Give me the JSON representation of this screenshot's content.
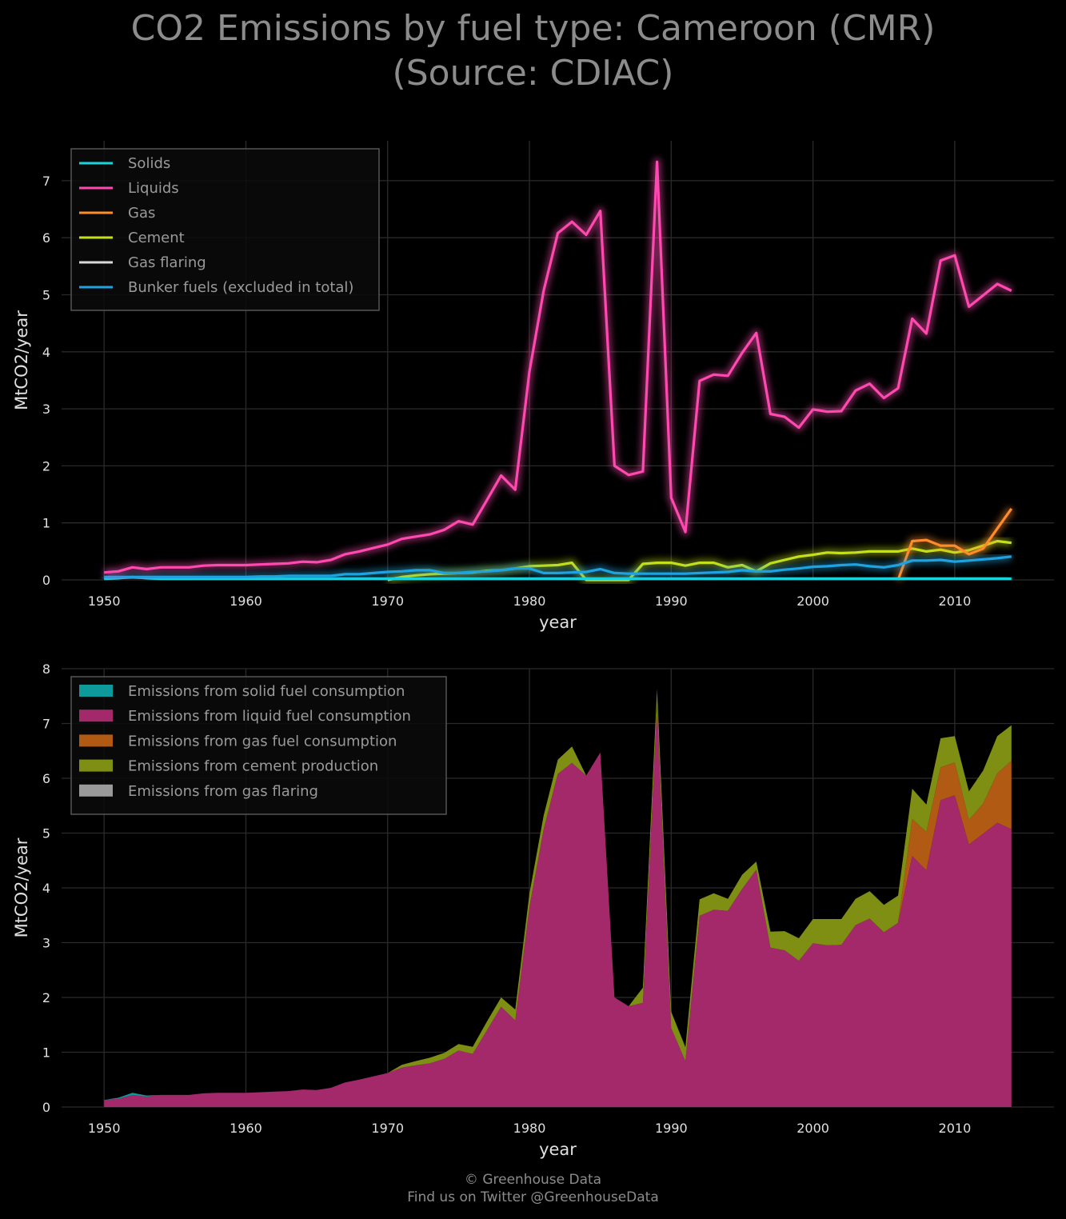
{
  "title": {
    "line1": "CO2 Emissions by fuel type: Cameroon (CMR)",
    "line2": "(Source: CDIAC)"
  },
  "footer": {
    "line1": "© Greenhouse Data",
    "line2": "Find us on Twitter @GreenhouseData"
  },
  "chart_data": [
    {
      "type": "line",
      "xlabel": "year",
      "ylabel": "MtCO2/year",
      "xlim": [
        1947,
        2017
      ],
      "ylim": [
        0,
        7.7
      ],
      "xticks": [
        1950,
        1960,
        1970,
        1980,
        1990,
        2000,
        2010
      ],
      "yticks": [
        0,
        1,
        2,
        3,
        4,
        5,
        6,
        7
      ],
      "grid": true,
      "legend_position": "top-left",
      "x": [
        1950,
        1951,
        1952,
        1953,
        1954,
        1955,
        1956,
        1957,
        1958,
        1959,
        1960,
        1961,
        1962,
        1963,
        1964,
        1965,
        1966,
        1967,
        1968,
        1969,
        1970,
        1971,
        1972,
        1973,
        1974,
        1975,
        1976,
        1977,
        1978,
        1979,
        1980,
        1981,
        1982,
        1983,
        1984,
        1985,
        1986,
        1987,
        1988,
        1989,
        1990,
        1991,
        1992,
        1993,
        1994,
        1995,
        1996,
        1997,
        1998,
        1999,
        2000,
        2001,
        2002,
        2003,
        2004,
        2005,
        2006,
        2007,
        2008,
        2009,
        2010,
        2011,
        2012,
        2013,
        2014
      ],
      "series": [
        {
          "name": "Solids",
          "color": "#17d3dc",
          "values": [
            0.02,
            0.03,
            0.05,
            0.03,
            0.02,
            0.02,
            0.02,
            0.02,
            0.02,
            0.02,
            0.02,
            0.02,
            0.02,
            0.02,
            0.02,
            0.02,
            0.02,
            0.02,
            0.02,
            0.02,
            0.02,
            0.02,
            0.02,
            0.02,
            0.02,
            0.02,
            0.02,
            0.02,
            0.02,
            0.02,
            0.02,
            0.02,
            0.02,
            0.02,
            0.02,
            0.02,
            0.02,
            0.02,
            0.02,
            0.02,
            0.02,
            0.02,
            0.02,
            0.02,
            0.02,
            0.02,
            0.02,
            0.02,
            0.02,
            0.02,
            0.02,
            0.02,
            0.02,
            0.02,
            0.02,
            0.02,
            0.02,
            0.02,
            0.02,
            0.02,
            0.02,
            0.02,
            0.02,
            0.02,
            0.02
          ]
        },
        {
          "name": "Liquids",
          "color": "#ff49b0",
          "values": [
            0.13,
            0.15,
            0.22,
            0.19,
            0.22,
            0.22,
            0.22,
            0.25,
            0.26,
            0.26,
            0.26,
            0.27,
            0.28,
            0.29,
            0.32,
            0.31,
            0.35,
            0.45,
            0.5,
            0.56,
            0.62,
            0.72,
            0.76,
            0.8,
            0.88,
            1.03,
            0.97,
            1.4,
            1.83,
            1.58,
            3.65,
            5.07,
            6.08,
            6.28,
            6.05,
            6.47,
            2.0,
            1.84,
            1.9,
            7.33,
            1.44,
            0.84,
            3.49,
            3.6,
            3.58,
            3.98,
            4.33,
            2.91,
            2.86,
            2.67,
            2.99,
            2.95,
            2.96,
            3.32,
            3.44,
            3.19,
            3.36,
            4.58,
            4.32,
            5.6,
            5.69,
            4.79,
            4.99,
            5.19,
            5.07
          ]
        },
        {
          "name": "Gas",
          "color": "#ff8c2a",
          "values": [
            null,
            null,
            null,
            null,
            null,
            null,
            null,
            null,
            null,
            null,
            null,
            null,
            null,
            null,
            null,
            null,
            null,
            null,
            null,
            null,
            null,
            null,
            null,
            null,
            null,
            null,
            null,
            null,
            null,
            null,
            null,
            null,
            null,
            null,
            null,
            null,
            null,
            null,
            null,
            null,
            null,
            null,
            null,
            null,
            null,
            null,
            null,
            null,
            null,
            null,
            null,
            null,
            null,
            null,
            null,
            null,
            0.0,
            0.68,
            0.7,
            0.6,
            0.6,
            0.45,
            0.55,
            0.9,
            1.25
          ]
        },
        {
          "name": "Cement",
          "color": "#c5e01a",
          "values": [
            null,
            null,
            null,
            null,
            null,
            null,
            null,
            null,
            null,
            null,
            null,
            null,
            null,
            null,
            null,
            null,
            null,
            null,
            null,
            null,
            0.0,
            0.05,
            0.08,
            0.1,
            0.11,
            0.12,
            0.13,
            0.16,
            0.17,
            0.2,
            0.24,
            0.25,
            0.26,
            0.3,
            0.0,
            0.0,
            0.0,
            0.0,
            0.28,
            0.3,
            0.3,
            0.25,
            0.3,
            0.3,
            0.22,
            0.26,
            0.15,
            0.29,
            0.35,
            0.41,
            0.44,
            0.48,
            0.47,
            0.48,
            0.5,
            0.5,
            0.5,
            0.55,
            0.5,
            0.53,
            0.48,
            0.52,
            0.6,
            0.68,
            0.65
          ]
        },
        {
          "name": "Gas flaring",
          "color": "#d9d9d9",
          "values": [
            null,
            null,
            null,
            null,
            null,
            null,
            null,
            null,
            null,
            null,
            null,
            null,
            null,
            null,
            null,
            null,
            null,
            null,
            null,
            null,
            null,
            null,
            null,
            null,
            null,
            null,
            null,
            null,
            null,
            null,
            null,
            null,
            null,
            null,
            null,
            null,
            null,
            null,
            null,
            null,
            null,
            null,
            null,
            null,
            null,
            null,
            null,
            null,
            null,
            null,
            null,
            null,
            null,
            null,
            null,
            null,
            null,
            null,
            null,
            null,
            null,
            null,
            null,
            null,
            null
          ]
        },
        {
          "name": "Bunker fuels (excluded in total)",
          "color": "#1fa3e0",
          "values": [
            0.05,
            0.05,
            0.05,
            0.05,
            0.05,
            0.05,
            0.05,
            0.05,
            0.05,
            0.05,
            0.05,
            0.06,
            0.06,
            0.07,
            0.07,
            0.07,
            0.07,
            0.1,
            0.1,
            0.12,
            0.14,
            0.15,
            0.17,
            0.17,
            0.12,
            0.12,
            0.14,
            0.15,
            0.17,
            0.2,
            0.2,
            0.12,
            0.12,
            0.13,
            0.14,
            0.19,
            0.12,
            0.11,
            0.11,
            0.11,
            0.11,
            0.11,
            0.12,
            0.13,
            0.14,
            0.17,
            0.15,
            0.15,
            0.18,
            0.2,
            0.23,
            0.24,
            0.26,
            0.27,
            0.24,
            0.22,
            0.26,
            0.34,
            0.34,
            0.35,
            0.32,
            0.34,
            0.36,
            0.38,
            0.41
          ]
        }
      ]
    },
    {
      "type": "area",
      "stacked": true,
      "xlabel": "year",
      "ylabel": "MtCO2/year",
      "xlim": [
        1947,
        2017
      ],
      "ylim": [
        0,
        8
      ],
      "xticks": [
        1950,
        1960,
        1970,
        1980,
        1990,
        2000,
        2010
      ],
      "yticks": [
        0,
        1,
        2,
        3,
        4,
        5,
        6,
        7,
        8
      ],
      "grid": true,
      "legend_position": "top-left",
      "x": [
        1950,
        1951,
        1952,
        1953,
        1954,
        1955,
        1956,
        1957,
        1958,
        1959,
        1960,
        1961,
        1962,
        1963,
        1964,
        1965,
        1966,
        1967,
        1968,
        1969,
        1970,
        1971,
        1972,
        1973,
        1974,
        1975,
        1976,
        1977,
        1978,
        1979,
        1980,
        1981,
        1982,
        1983,
        1984,
        1985,
        1986,
        1987,
        1988,
        1989,
        1990,
        1991,
        1992,
        1993,
        1994,
        1995,
        1996,
        1997,
        1998,
        1999,
        2000,
        2001,
        2002,
        2003,
        2004,
        2005,
        2006,
        2007,
        2008,
        2009,
        2010,
        2011,
        2012,
        2013,
        2014
      ],
      "series": [
        {
          "name": "Emissions from solid fuel consumption",
          "color": "#0e9a9a",
          "values": [
            0.0,
            0.02,
            0.04,
            0.02,
            0.0,
            0.0,
            0.0,
            0.0,
            0.0,
            0.0,
            0.0,
            0.0,
            0.0,
            0.0,
            0.0,
            0.0,
            0.0,
            0.0,
            0.0,
            0.0,
            0.0,
            0.0,
            0.0,
            0.0,
            0.0,
            0.0,
            0.0,
            0.0,
            0.0,
            0.0,
            0.0,
            0.0,
            0.0,
            0.0,
            0.0,
            0.0,
            0.0,
            0.0,
            0.0,
            0.0,
            0.0,
            0.0,
            0.0,
            0.0,
            0.0,
            0.0,
            0.0,
            0.0,
            0.0,
            0.0,
            0.0,
            0.0,
            0.0,
            0.0,
            0.0,
            0.0,
            0.0,
            0.0,
            0.0,
            0.0,
            0.0,
            0.0,
            0.0,
            0.0,
            0.0
          ]
        },
        {
          "name": "Emissions from liquid fuel consumption",
          "color": "#a3296b",
          "values": [
            0.13,
            0.15,
            0.22,
            0.19,
            0.22,
            0.22,
            0.22,
            0.25,
            0.26,
            0.26,
            0.26,
            0.27,
            0.28,
            0.29,
            0.32,
            0.31,
            0.35,
            0.45,
            0.5,
            0.56,
            0.62,
            0.72,
            0.76,
            0.8,
            0.88,
            1.03,
            0.97,
            1.4,
            1.83,
            1.58,
            3.65,
            5.07,
            6.08,
            6.28,
            6.05,
            6.47,
            2.0,
            1.84,
            1.9,
            7.33,
            1.44,
            0.84,
            3.49,
            3.6,
            3.58,
            3.98,
            4.33,
            2.91,
            2.86,
            2.67,
            2.99,
            2.95,
            2.96,
            3.32,
            3.44,
            3.19,
            3.36,
            4.58,
            4.32,
            5.6,
            5.69,
            4.79,
            4.99,
            5.19,
            5.07
          ]
        },
        {
          "name": "Emissions from gas fuel consumption",
          "color": "#b05a14",
          "values": [
            0,
            0,
            0,
            0,
            0,
            0,
            0,
            0,
            0,
            0,
            0,
            0,
            0,
            0,
            0,
            0,
            0,
            0,
            0,
            0,
            0,
            0,
            0,
            0,
            0,
            0,
            0,
            0,
            0,
            0,
            0,
            0,
            0,
            0,
            0,
            0,
            0,
            0,
            0,
            0,
            0,
            0,
            0,
            0,
            0,
            0,
            0,
            0,
            0,
            0,
            0,
            0,
            0,
            0,
            0,
            0,
            0.0,
            0.68,
            0.7,
            0.6,
            0.6,
            0.45,
            0.55,
            0.9,
            1.25
          ]
        },
        {
          "name": "Emissions from cement production",
          "color": "#7f8f13",
          "values": [
            0,
            0,
            0,
            0,
            0,
            0,
            0,
            0,
            0,
            0,
            0,
            0,
            0,
            0,
            0,
            0,
            0,
            0,
            0,
            0,
            0.0,
            0.05,
            0.08,
            0.1,
            0.11,
            0.12,
            0.13,
            0.16,
            0.17,
            0.2,
            0.24,
            0.25,
            0.26,
            0.3,
            0.0,
            0.0,
            0.0,
            0.0,
            0.28,
            0.3,
            0.3,
            0.25,
            0.3,
            0.3,
            0.22,
            0.26,
            0.15,
            0.29,
            0.35,
            0.41,
            0.44,
            0.48,
            0.47,
            0.48,
            0.5,
            0.5,
            0.5,
            0.55,
            0.5,
            0.53,
            0.48,
            0.52,
            0.6,
            0.68,
            0.65
          ]
        },
        {
          "name": "Emissions from gas flaring",
          "color": "#9a9a9a",
          "values": [
            0,
            0,
            0,
            0,
            0,
            0,
            0,
            0,
            0,
            0,
            0,
            0,
            0,
            0,
            0,
            0,
            0,
            0,
            0,
            0,
            0,
            0,
            0,
            0,
            0,
            0,
            0,
            0,
            0,
            0,
            0,
            0,
            0,
            0,
            0,
            0,
            0,
            0,
            0,
            0,
            0,
            0,
            0,
            0,
            0,
            0,
            0,
            0,
            0,
            0,
            0,
            0,
            0,
            0,
            0,
            0,
            0,
            0,
            0,
            0,
            0,
            0,
            0,
            0,
            0
          ]
        }
      ]
    }
  ]
}
